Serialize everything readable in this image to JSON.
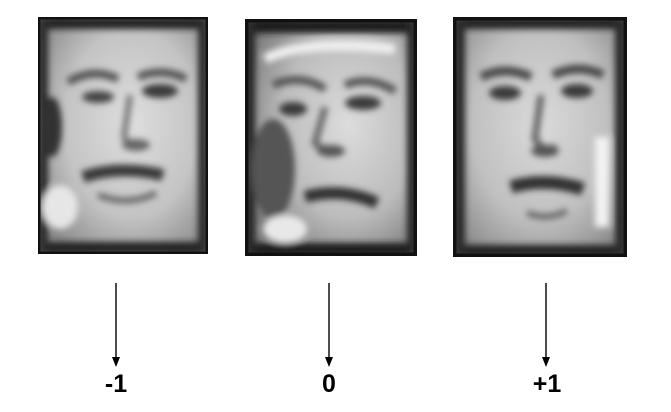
{
  "faces": [
    {
      "icon": "face-photo-icon",
      "score": "-1"
    },
    {
      "icon": "face-photo-icon",
      "score": "0"
    },
    {
      "icon": "face-photo-icon",
      "score": "+1"
    }
  ],
  "colors": {
    "background": "#ffffff",
    "arrow": "#000000",
    "text": "#000000",
    "photo_border": "#111111",
    "skin_light": "#d9d9d9",
    "skin_mid": "#a8a8a8",
    "shadow": "#3a3a3a"
  }
}
